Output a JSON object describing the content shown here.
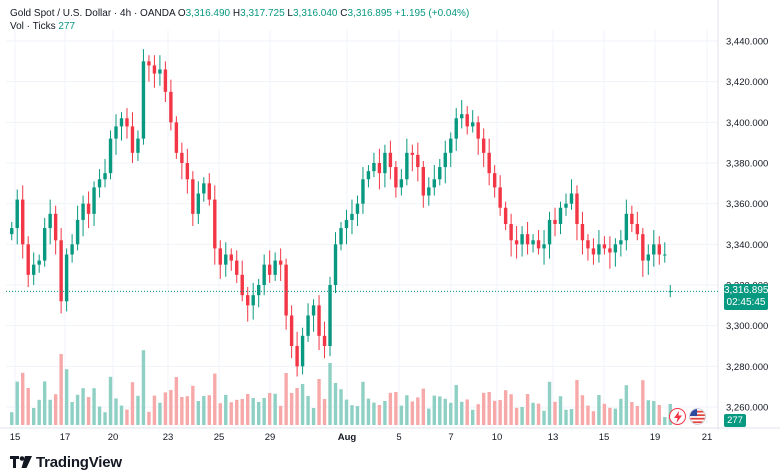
{
  "legend": {
    "symbol": "Gold Spot / U.S. Dollar · 4h · OANDA",
    "o_label": "O",
    "o_value": "3,316.490",
    "h_label": "H",
    "h_value": "3,317.725",
    "l_label": "L",
    "l_value": "3,316.040",
    "c_label": "C",
    "c_value": "3,316.895",
    "change": "+1.195 (+0.04%)",
    "vol_label": "Vol · Ticks",
    "vol_value": "277"
  },
  "price_tag": {
    "price": "3,316.895",
    "countdown": "02:45:45"
  },
  "volume_tag": "277",
  "logo": {
    "text": "TradingView"
  },
  "colors": {
    "up": "#089981",
    "down": "#f23645",
    "up_volume": "#8fd0c4",
    "down_volume": "#f7a9a9",
    "grid": "#f0f3fa",
    "axis_text": "#131722"
  },
  "chart_data": {
    "type": "candlestick",
    "y_ticks": [
      3260000,
      3280000,
      3300000,
      3320000,
      3340000,
      3360000,
      3380000,
      3400000,
      3420000,
      3440000
    ],
    "y_tick_labels": [
      "3,260.000",
      "3,280.000",
      "3,300.000",
      "3,320.000",
      "3,340.000",
      "3,360.000",
      "3,380.000",
      "3,400.000",
      "3,420.000",
      "3,440.000"
    ],
    "x_tick_labels": [
      "15",
      "17",
      "20",
      "23",
      "25",
      "29",
      "Aug",
      "5",
      "7",
      "10",
      "13",
      "15",
      "19",
      "21"
    ],
    "last_price": 3316.895,
    "close": [
      3348,
      3362,
      3340,
      3325,
      3330,
      3332,
      3348,
      3355,
      3342,
      3312,
      3335,
      3340,
      3352,
      3360,
      3355,
      3368,
      3372,
      3375,
      3392,
      3398,
      3402,
      3398,
      3385,
      3392,
      3430,
      3428,
      3424,
      3426,
      3415,
      3400,
      3385,
      3380,
      3372,
      3355,
      3365,
      3370,
      3362,
      3338,
      3330,
      3335,
      3332,
      3325,
      3315,
      3310,
      3315,
      3320,
      3330,
      3325,
      3332,
      3330,
      3305,
      3290,
      3280,
      3295,
      3305,
      3310,
      3295,
      3290,
      3320,
      3340,
      3348,
      3352,
      3355,
      3360,
      3372,
      3376,
      3380,
      3375,
      3385,
      3378,
      3368,
      3372,
      3385,
      3384,
      3378,
      3364,
      3368,
      3372,
      3378,
      3385,
      3392,
      3402,
      3404,
      3398,
      3400,
      3392,
      3385,
      3375,
      3368,
      3358,
      3350,
      3342,
      3340,
      3345,
      3340,
      3342,
      3338,
      3340,
      3352,
      3350,
      3358,
      3360,
      3365,
      3350,
      3342,
      3338,
      3335,
      3340,
      3338,
      3336,
      3340,
      3342,
      3355,
      3350,
      3345,
      3332,
      3335,
      3340,
      3335,
      3335,
      3317
    ],
    "open": [
      3345,
      3348,
      3362,
      3340,
      3325,
      3330,
      3332,
      3348,
      3355,
      3342,
      3312,
      3335,
      3340,
      3352,
      3360,
      3355,
      3368,
      3372,
      3375,
      3392,
      3398,
      3402,
      3398,
      3385,
      3392,
      3430,
      3428,
      3424,
      3426,
      3415,
      3400,
      3385,
      3380,
      3372,
      3355,
      3365,
      3370,
      3362,
      3338,
      3330,
      3335,
      3332,
      3325,
      3315,
      3310,
      3315,
      3320,
      3330,
      3325,
      3332,
      3330,
      3305,
      3290,
      3280,
      3295,
      3305,
      3310,
      3295,
      3290,
      3320,
      3340,
      3348,
      3352,
      3355,
      3360,
      3372,
      3376,
      3380,
      3375,
      3385,
      3378,
      3368,
      3372,
      3385,
      3384,
      3378,
      3364,
      3368,
      3372,
      3378,
      3385,
      3392,
      3402,
      3404,
      3398,
      3400,
      3392,
      3385,
      3375,
      3368,
      3358,
      3350,
      3342,
      3340,
      3345,
      3340,
      3342,
      3338,
      3340,
      3352,
      3350,
      3358,
      3360,
      3365,
      3350,
      3342,
      3338,
      3335,
      3340,
      3338,
      3336,
      3340,
      3342,
      3355,
      3350,
      3345,
      3332,
      3335,
      3340,
      3335,
      3317
    ]
  }
}
